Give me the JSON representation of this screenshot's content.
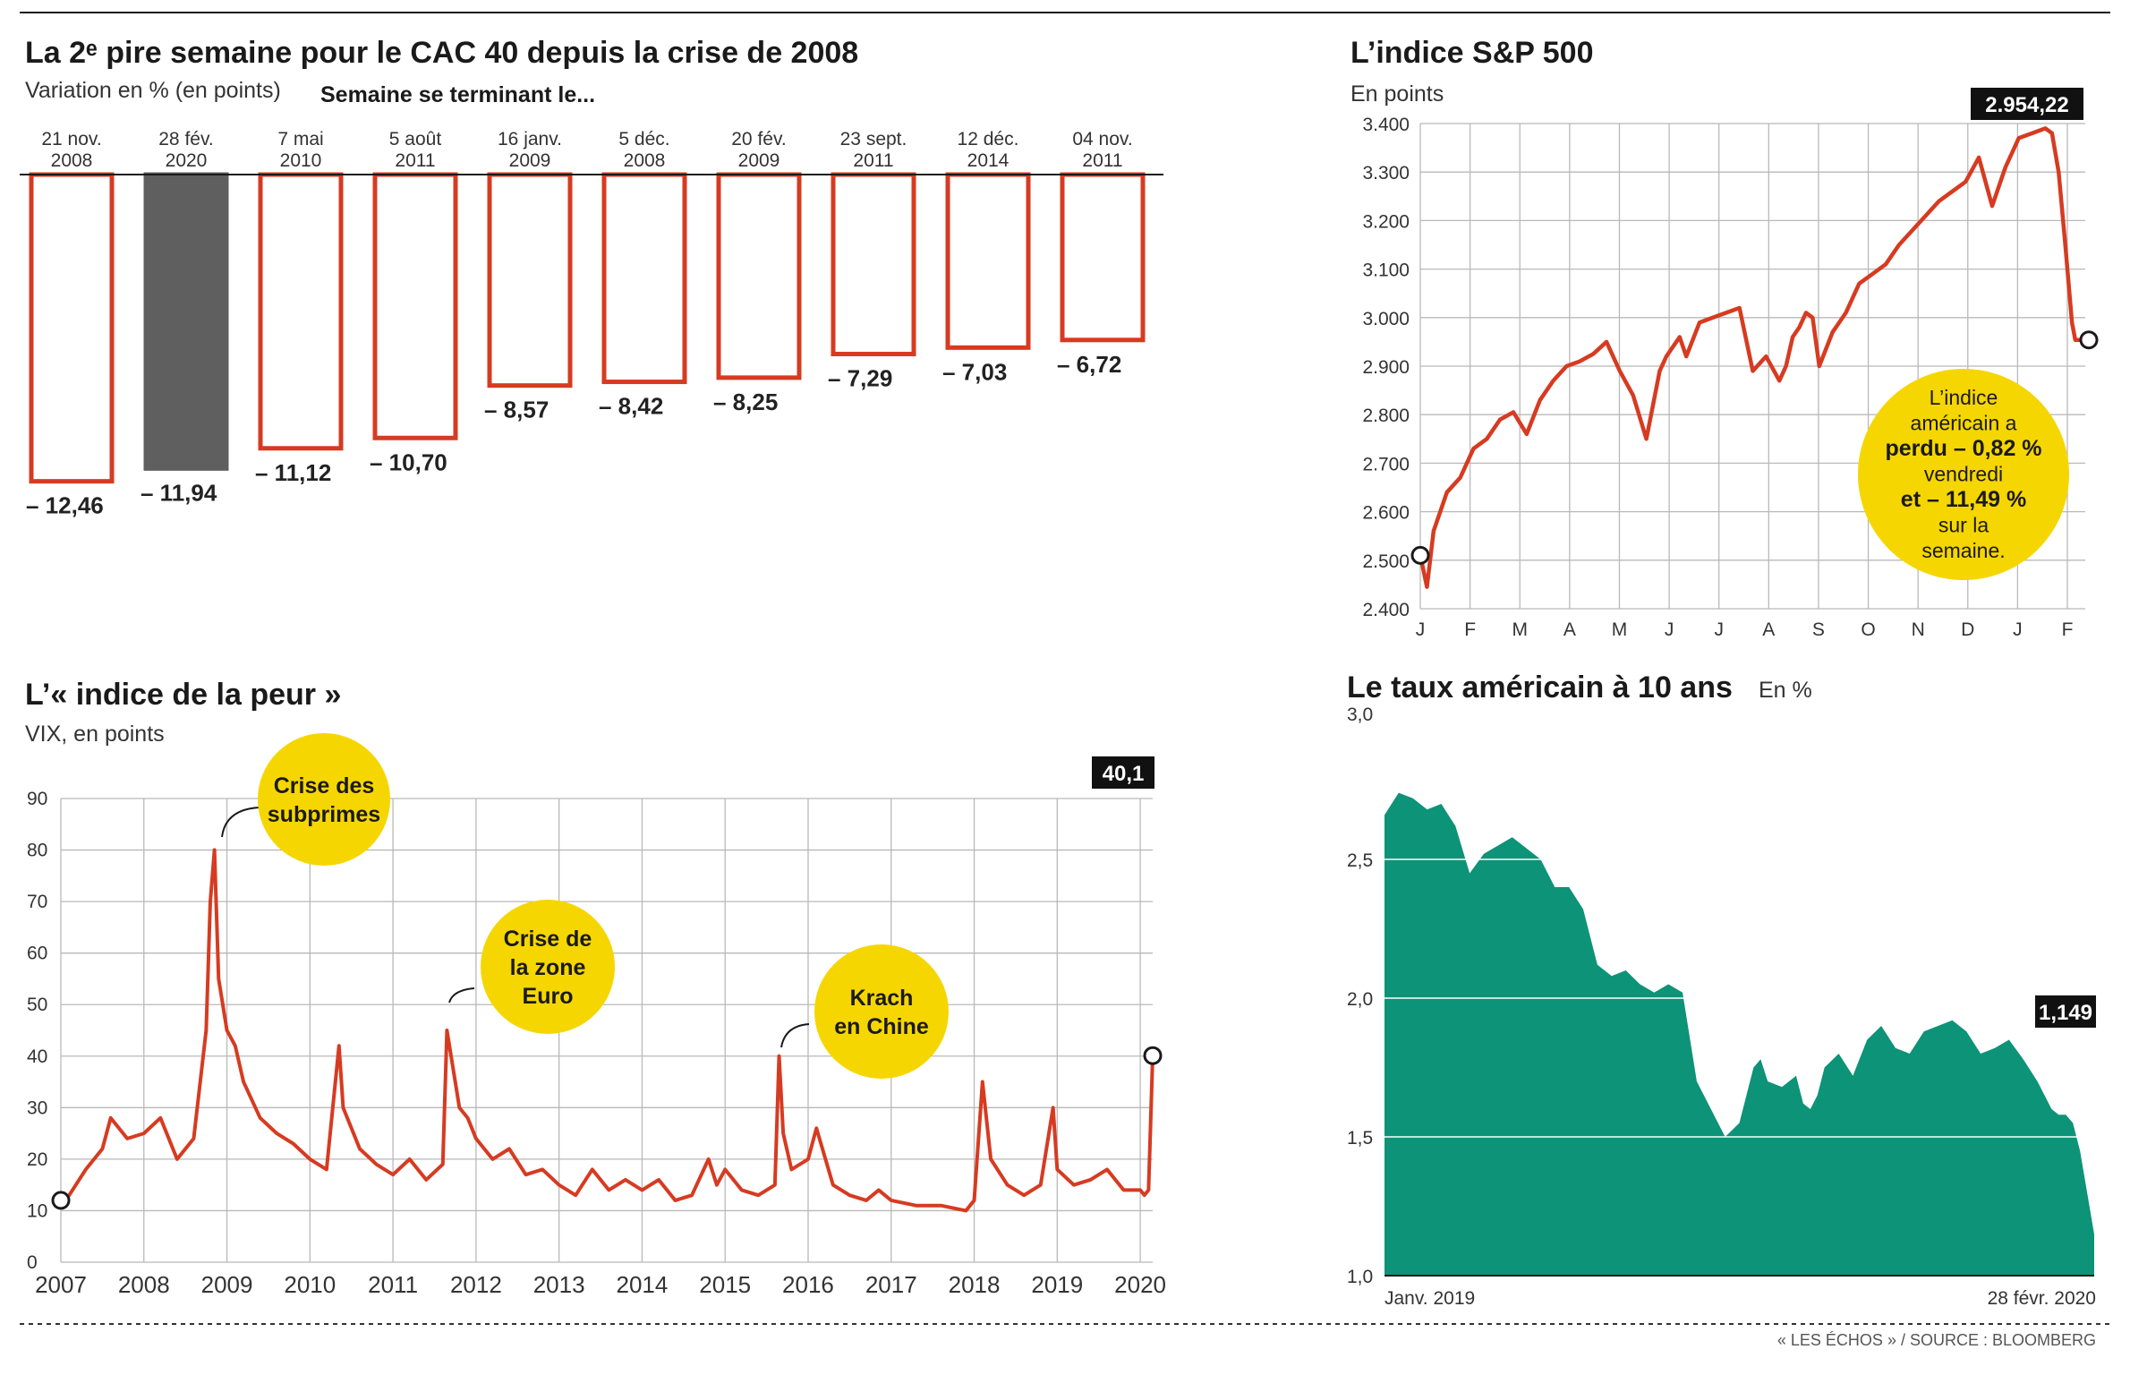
{
  "cac": {
    "title": "La 2ᵉ pire semaine pour le CAC 40 depuis la crise de 2008",
    "subtitle": "Variation en % (en points)",
    "subtitle2": "Semaine se terminant le...",
    "chart_data": {
      "type": "bar",
      "categories": [
        [
          "21 nov.",
          "2008"
        ],
        [
          "28 fév.",
          "2020"
        ],
        [
          "7 mai",
          "2010"
        ],
        [
          "5 août",
          "2011"
        ],
        [
          "16 janv.",
          "2009"
        ],
        [
          "5 déc.",
          "2008"
        ],
        [
          "20 fév.",
          "2009"
        ],
        [
          "23 sept.",
          "2011"
        ],
        [
          "12 déc.",
          "2014"
        ],
        [
          "04 nov.",
          "2011"
        ]
      ],
      "values": [
        -12.46,
        -11.94,
        -11.12,
        -10.7,
        -8.57,
        -8.42,
        -8.25,
        -7.29,
        -7.03,
        -6.72
      ],
      "labels": [
        "– 12,46",
        "– 11,94",
        "– 11,12",
        "– 10,70",
        "– 8,57",
        "– 8,42",
        "– 8,25",
        "– 7,29",
        "– 7,03",
        "– 6,72"
      ],
      "highlight_index": 1,
      "colors": {
        "bar_outline": "#d63b21",
        "highlight": "#5f5f5f"
      }
    }
  },
  "sp": {
    "title": "L’indice S&P 500",
    "subtitle": "En points",
    "last_value_tag": "2.954,22",
    "bubble": [
      "L’indice",
      "américain a",
      "perdu – 0,82 %",
      "vendredi",
      "et – 11,49 %",
      "sur la",
      "semaine."
    ],
    "chart_data": {
      "type": "line",
      "ylim": [
        2400,
        3400
      ],
      "yticks": [
        "2.400",
        "2.500",
        "2.600",
        "2.700",
        "2.800",
        "2.900",
        "3.000",
        "3.100",
        "3.200",
        "3.300",
        "3.400"
      ],
      "xticks": [
        "J",
        "F",
        "M",
        "A",
        "M",
        "J",
        "J",
        "A",
        "S",
        "O",
        "N",
        "D",
        "J",
        "F"
      ],
      "series": [
        {
          "t": [
            0.0,
            0.01,
            0.02,
            0.04,
            0.06,
            0.08,
            0.1,
            0.12,
            0.14,
            0.16,
            0.18,
            0.2,
            0.22,
            0.24,
            0.26,
            0.28,
            0.3,
            0.32,
            0.34,
            0.36,
            0.37,
            0.38,
            0.39,
            0.4,
            0.42,
            0.44,
            0.46,
            0.48,
            0.5,
            0.52,
            0.54,
            0.55,
            0.56,
            0.57,
            0.58,
            0.59,
            0.6,
            0.62,
            0.63,
            0.64,
            0.66,
            0.68,
            0.7,
            0.72,
            0.74,
            0.76,
            0.78,
            0.8,
            0.82,
            0.84,
            0.86,
            0.88,
            0.9,
            0.92,
            0.94,
            0.95,
            0.96,
            0.97,
            0.98,
            0.985,
            0.99,
            1.0
          ],
          "values": [
            2510,
            2445,
            2560,
            2640,
            2670,
            2730,
            2750,
            2790,
            2805,
            2760,
            2830,
            2870,
            2900,
            2910,
            2925,
            2950,
            2890,
            2840,
            2750,
            2890,
            2920,
            2940,
            2960,
            2920,
            2990,
            3000,
            3010,
            3020,
            2890,
            2920,
            2870,
            2900,
            2960,
            2980,
            3010,
            3000,
            2900,
            2970,
            2990,
            3010,
            3070,
            3090,
            3110,
            3150,
            3180,
            3210,
            3240,
            3260,
            3280,
            3330,
            3230,
            3310,
            3370,
            3380,
            3390,
            3380,
            3300,
            3150,
            2990,
            2954,
            2954,
            2954
          ]
        }
      ],
      "colors": {
        "line": "#d63b21",
        "bubble": "#f6d600"
      }
    }
  },
  "vix": {
    "title": "L’« indice de la peur »",
    "subtitle": "VIX, en points",
    "last_value_tag": "40,1",
    "annotations": [
      [
        "Crise des",
        "subprimes"
      ],
      [
        "Crise de",
        "la zone",
        "Euro"
      ],
      [
        "Krach",
        "en Chine"
      ]
    ],
    "chart_data": {
      "type": "line",
      "ylim": [
        0,
        90
      ],
      "yticks": [
        "0",
        "10",
        "20",
        "30",
        "40",
        "50",
        "60",
        "70",
        "80",
        "90"
      ],
      "xticks": [
        "2007",
        "2008",
        "2009",
        "2010",
        "2011",
        "2012",
        "2013",
        "2014",
        "2015",
        "2016",
        "2017",
        "2018",
        "2019",
        "2020"
      ],
      "series": [
        {
          "year": [
            2007.0,
            2007.1,
            2007.3,
            2007.5,
            2007.6,
            2007.8,
            2008.0,
            2008.2,
            2008.4,
            2008.6,
            2008.75,
            2008.8,
            2008.85,
            2008.9,
            2009.0,
            2009.1,
            2009.2,
            2009.4,
            2009.6,
            2009.8,
            2010.0,
            2010.2,
            2010.35,
            2010.4,
            2010.6,
            2010.8,
            2011.0,
            2011.2,
            2011.4,
            2011.6,
            2011.65,
            2011.7,
            2011.8,
            2011.9,
            2012.0,
            2012.2,
            2012.4,
            2012.6,
            2012.8,
            2013.0,
            2013.2,
            2013.4,
            2013.6,
            2013.8,
            2014.0,
            2014.2,
            2014.4,
            2014.6,
            2014.8,
            2014.9,
            2015.0,
            2015.2,
            2015.4,
            2015.6,
            2015.65,
            2015.7,
            2015.8,
            2016.0,
            2016.1,
            2016.3,
            2016.5,
            2016.7,
            2016.85,
            2017.0,
            2017.3,
            2017.6,
            2017.9,
            2018.0,
            2018.1,
            2018.2,
            2018.4,
            2018.6,
            2018.8,
            2018.95,
            2019.0,
            2019.2,
            2019.4,
            2019.6,
            2019.8,
            2020.0,
            2020.05,
            2020.1,
            2020.15
          ],
          "values": [
            12,
            13,
            18,
            22,
            28,
            24,
            25,
            28,
            20,
            24,
            45,
            70,
            80,
            55,
            45,
            42,
            35,
            28,
            25,
            23,
            20,
            18,
            42,
            30,
            22,
            19,
            17,
            20,
            16,
            19,
            45,
            40,
            30,
            28,
            24,
            20,
            22,
            17,
            18,
            15,
            13,
            18,
            14,
            16,
            14,
            16,
            12,
            13,
            20,
            15,
            18,
            14,
            13,
            15,
            40,
            25,
            18,
            20,
            26,
            15,
            13,
            12,
            14,
            12,
            11,
            11,
            10,
            12,
            35,
            20,
            15,
            13,
            15,
            30,
            18,
            15,
            16,
            18,
            14,
            14,
            13,
            14,
            40.1
          ]
        }
      ],
      "colors": {
        "line": "#d63b21",
        "bubble": "#f6d600"
      }
    }
  },
  "ust": {
    "title": "Le taux américain à 10 ans",
    "unit": "En %",
    "last_value_tag": "1,149",
    "start_label": "Janv. 2019",
    "end_label": "28 févr. 2020",
    "chart_data": {
      "type": "area",
      "ylim": [
        1.0,
        3.0
      ],
      "yticks": [
        "1,0",
        "1,5",
        "2,0",
        "2,5",
        "3,0"
      ],
      "series": [
        {
          "t": [
            0.0,
            0.01,
            0.02,
            0.04,
            0.06,
            0.08,
            0.1,
            0.12,
            0.14,
            0.16,
            0.18,
            0.2,
            0.22,
            0.24,
            0.26,
            0.28,
            0.3,
            0.32,
            0.34,
            0.36,
            0.38,
            0.4,
            0.42,
            0.44,
            0.46,
            0.48,
            0.5,
            0.52,
            0.53,
            0.54,
            0.56,
            0.58,
            0.59,
            0.6,
            0.61,
            0.62,
            0.64,
            0.66,
            0.68,
            0.7,
            0.72,
            0.74,
            0.76,
            0.78,
            0.8,
            0.82,
            0.84,
            0.86,
            0.88,
            0.9,
            0.92,
            0.94,
            0.95,
            0.96,
            0.97,
            0.98,
            0.99,
            1.0
          ],
          "values": [
            2.66,
            2.7,
            2.74,
            2.72,
            2.68,
            2.7,
            2.62,
            2.45,
            2.52,
            2.55,
            2.58,
            2.54,
            2.5,
            2.4,
            2.4,
            2.32,
            2.12,
            2.08,
            2.1,
            2.05,
            2.02,
            2.05,
            2.02,
            1.7,
            1.6,
            1.5,
            1.55,
            1.75,
            1.78,
            1.7,
            1.68,
            1.72,
            1.62,
            1.6,
            1.65,
            1.75,
            1.8,
            1.72,
            1.85,
            1.9,
            1.82,
            1.8,
            1.88,
            1.9,
            1.92,
            1.88,
            1.8,
            1.82,
            1.85,
            1.78,
            1.7,
            1.6,
            1.58,
            1.58,
            1.55,
            1.45,
            1.3,
            1.149
          ]
        }
      ],
      "colors": {
        "fill": "#0d9377"
      }
    }
  },
  "footer": {
    "source": "« LES ÉCHOS » / SOURCE : BLOOMBERG"
  }
}
